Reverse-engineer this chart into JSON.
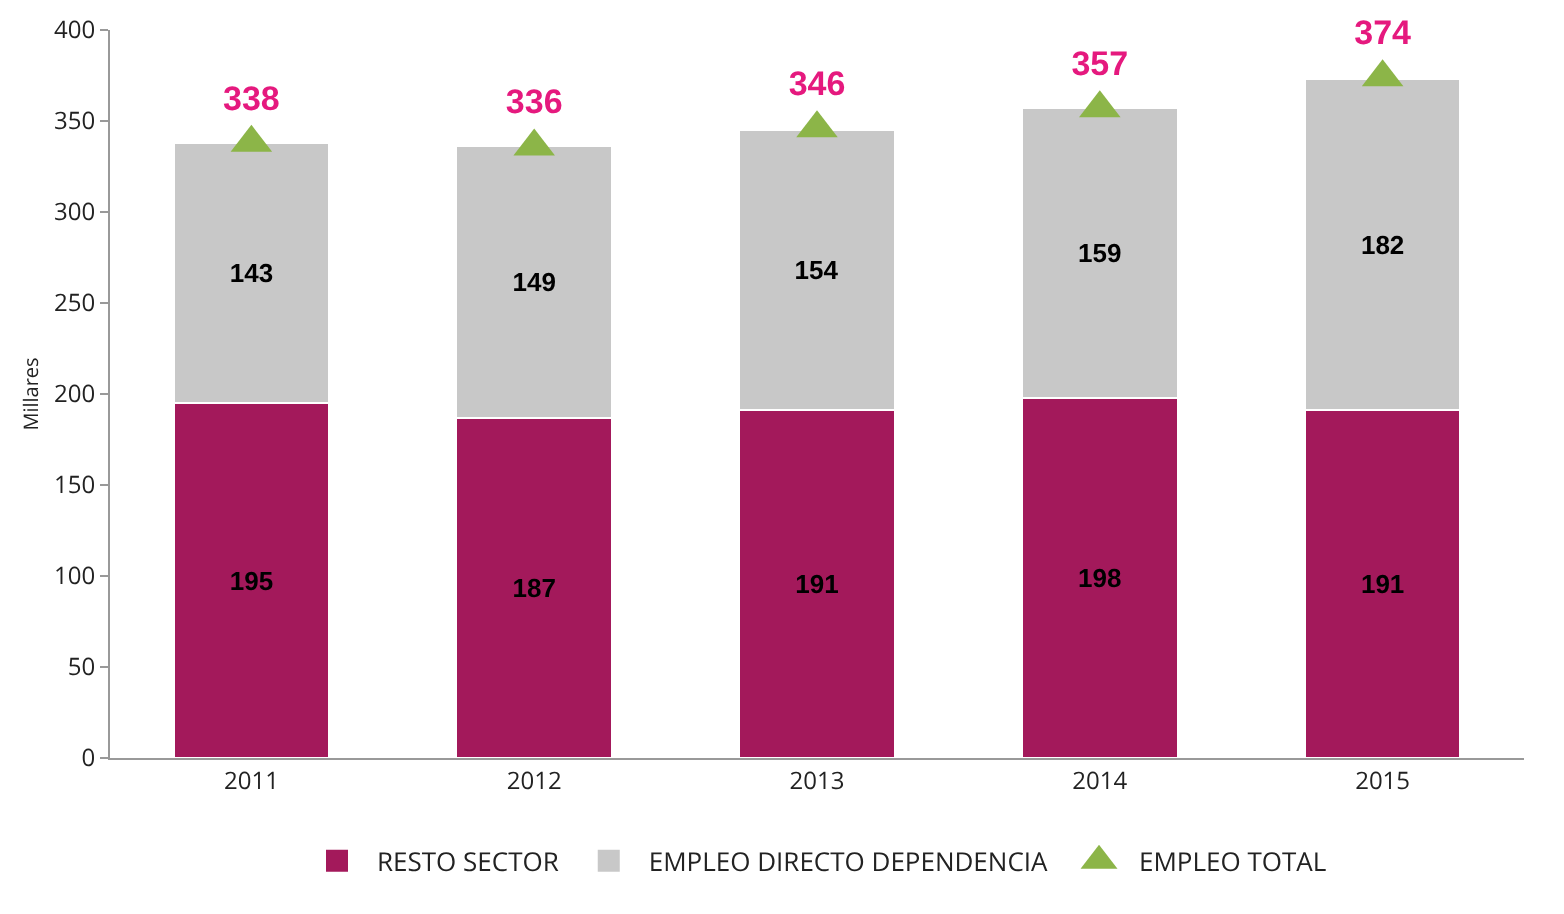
{
  "chart_data": {
    "type": "bar",
    "stacked": true,
    "ylabel": "Millares",
    "categories": [
      "2011",
      "2012",
      "2013",
      "2014",
      "2015"
    ],
    "series": [
      {
        "name": "RESTO SECTOR",
        "color": "#a3195b",
        "values": [
          195,
          187,
          191,
          198,
          191
        ]
      },
      {
        "name": "EMPLEO DIRECTO DEPENDENCIA",
        "color": "#c8c8c8",
        "values": [
          143,
          149,
          154,
          159,
          182
        ]
      },
      {
        "name": "EMPLEO TOTAL",
        "type": "scatter",
        "marker": "triangle",
        "color": "#8cb548",
        "values": [
          338,
          336,
          346,
          357,
          374
        ]
      }
    ],
    "data_labels": true,
    "ylim": [
      0,
      400
    ],
    "yticks": [
      0,
      50,
      100,
      150,
      200,
      250,
      300,
      350,
      400
    ],
    "grid": false,
    "legend": "bottom"
  }
}
